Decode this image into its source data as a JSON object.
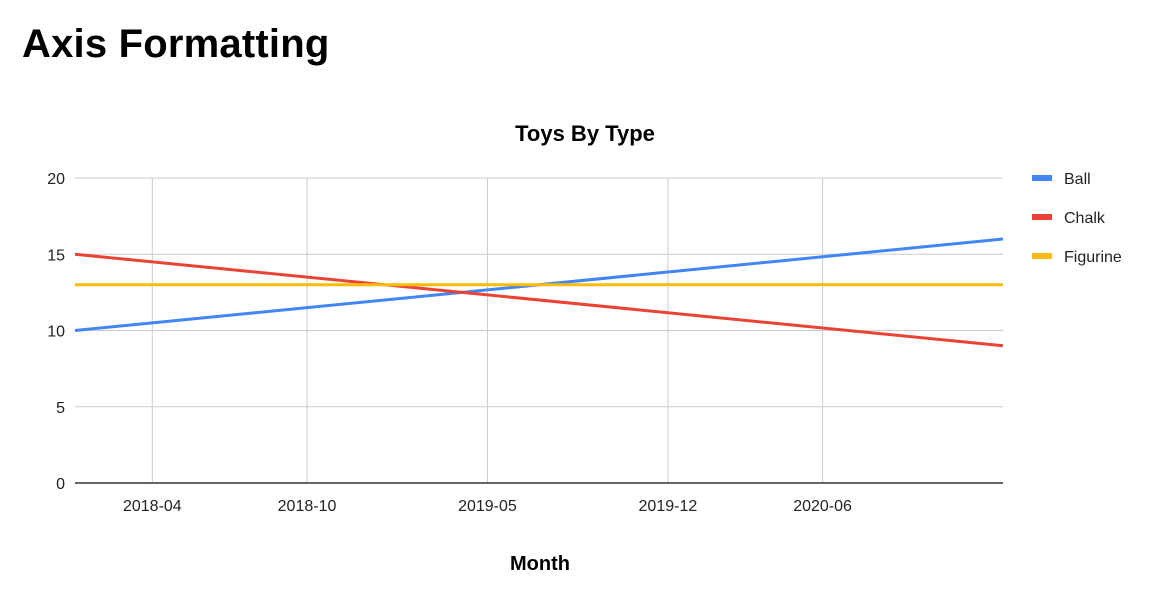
{
  "page": {
    "heading": "Axis Formatting"
  },
  "chart_data": {
    "type": "line",
    "title": "Toys By Type",
    "xlabel": "Month",
    "ylabel": "",
    "x_axis_type": "date",
    "x": [
      "2018-01",
      "2021-01"
    ],
    "xlim": [
      "2018-01",
      "2021-01"
    ],
    "x_ticks": [
      "2018-04",
      "2018-10",
      "2019-05",
      "2019-12",
      "2020-06"
    ],
    "ylim": [
      0,
      20
    ],
    "y_ticks": [
      0,
      5,
      10,
      15,
      20
    ],
    "grid": true,
    "legend": "right",
    "series": [
      {
        "name": "Ball",
        "color": "#4285F4",
        "values": [
          10,
          16
        ]
      },
      {
        "name": "Chalk",
        "color": "#EA4335",
        "values": [
          15,
          9
        ]
      },
      {
        "name": "Figurine",
        "color": "#FBBC04",
        "values": [
          13,
          13
        ]
      }
    ]
  }
}
